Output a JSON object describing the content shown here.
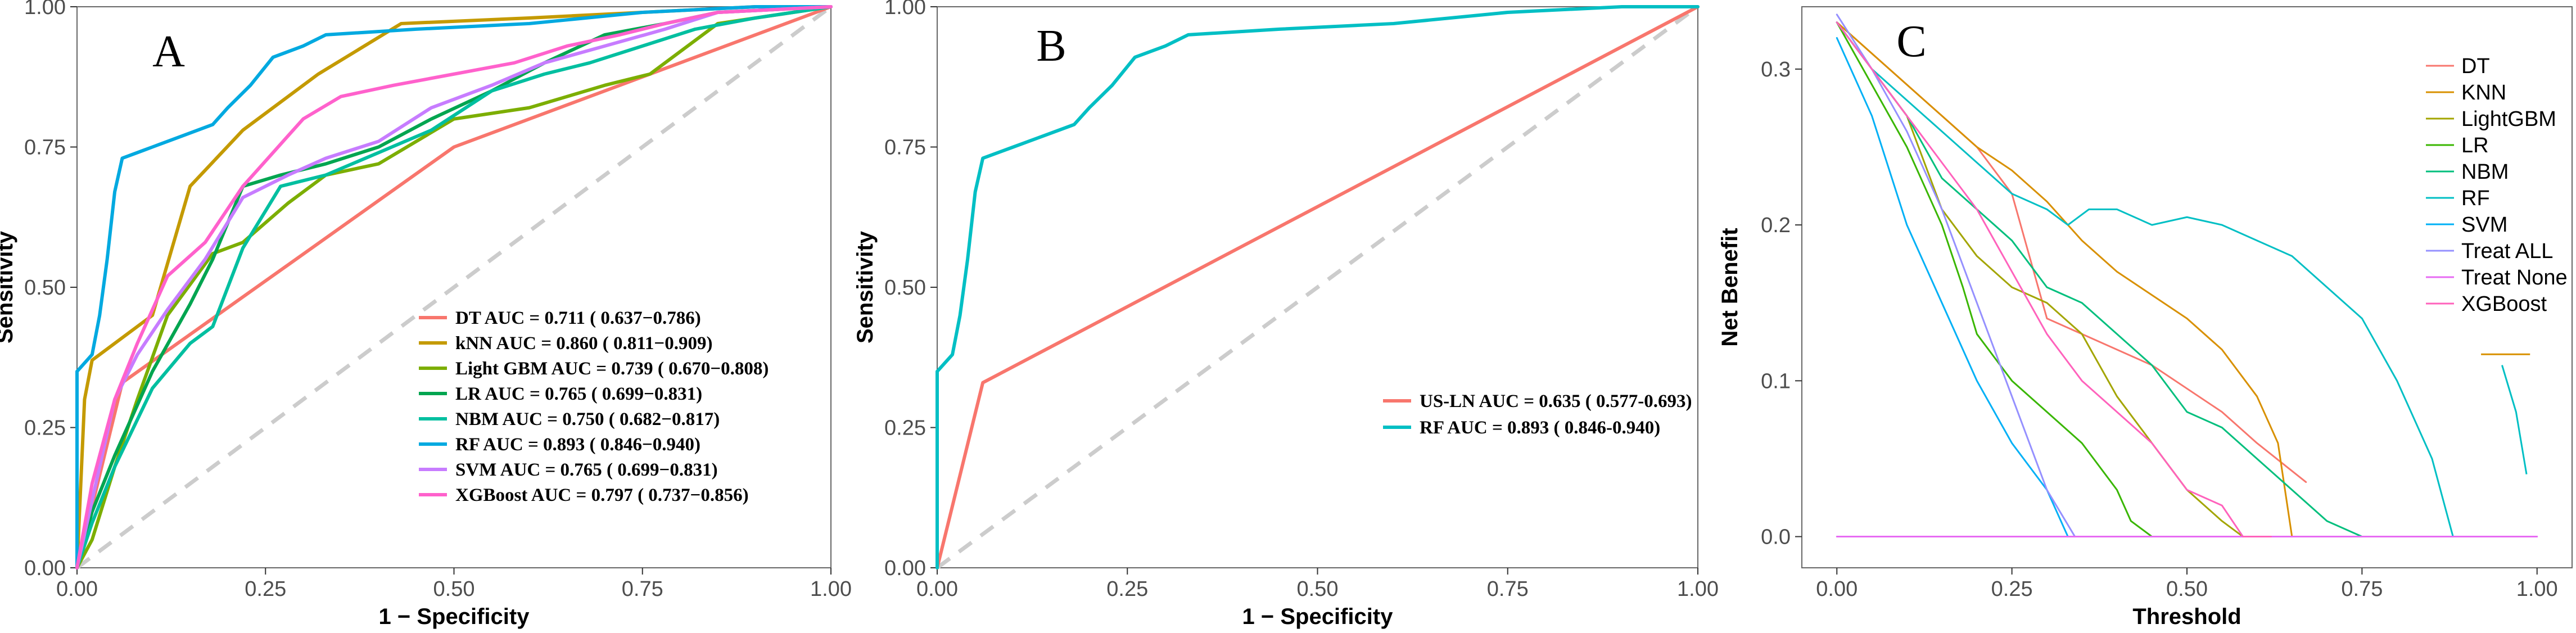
{
  "chart_data": [
    {
      "type": "line",
      "panel_label": "A",
      "title": "",
      "xlabel": "1 − Specificity",
      "ylabel": "Sensitivity",
      "xlim": [
        0,
        1
      ],
      "ylim": [
        0,
        1
      ],
      "xticks": [
        0.0,
        0.25,
        0.5,
        0.75,
        1.0
      ],
      "xtick_labels": [
        "0.00",
        "0.25",
        "0.50",
        "0.75",
        "1.00"
      ],
      "yticks": [
        0.0,
        0.25,
        0.5,
        0.75,
        1.0
      ],
      "ytick_labels": [
        "0.00",
        "0.25",
        "0.50",
        "0.75",
        "1.00"
      ],
      "grid": false,
      "reference_line": {
        "x": [
          0,
          1
        ],
        "y": [
          0,
          1
        ],
        "color": "#cccccc",
        "style": "dashed"
      },
      "legend_position": "bottom-right",
      "series": [
        {
          "name": "DT",
          "legend": "DT AUC = 0.711 ( 0.637−0.786)",
          "color": "#f8766d",
          "x": [
            0,
            0.06,
            0.5,
            1.0
          ],
          "y": [
            0,
            0.33,
            0.75,
            1.0
          ]
        },
        {
          "name": "kNN",
          "legend": "kNN AUC = 0.860 ( 0.811−0.909)",
          "color": "#c49a00",
          "x": [
            0,
            0.01,
            0.02,
            0.1,
            0.15,
            0.22,
            0.32,
            0.43,
            0.6,
            0.75,
            0.9,
            1.0
          ],
          "y": [
            0,
            0.3,
            0.37,
            0.45,
            0.68,
            0.78,
            0.88,
            0.97,
            0.98,
            0.99,
            1.0,
            1.0
          ]
        },
        {
          "name": "Light GBM",
          "legend": "Light GBM AUC = 0.739 ( 0.670−0.808)",
          "color": "#7cae00",
          "x": [
            0,
            0.02,
            0.05,
            0.08,
            0.12,
            0.18,
            0.22,
            0.28,
            0.33,
            0.4,
            0.5,
            0.6,
            0.7,
            0.76,
            0.8,
            0.85,
            1.0
          ],
          "y": [
            0,
            0.05,
            0.18,
            0.3,
            0.45,
            0.56,
            0.58,
            0.65,
            0.7,
            0.72,
            0.8,
            0.82,
            0.86,
            0.88,
            0.92,
            0.97,
            1.0
          ]
        },
        {
          "name": "LR",
          "legend": "LR AUC = 0.765 ( 0.699−0.831)",
          "color": "#00a550",
          "x": [
            0,
            0.02,
            0.05,
            0.1,
            0.15,
            0.18,
            0.22,
            0.27,
            0.33,
            0.4,
            0.47,
            0.55,
            0.62,
            0.7,
            0.78,
            0.85,
            1.0
          ],
          "y": [
            0,
            0.1,
            0.2,
            0.35,
            0.47,
            0.55,
            0.68,
            0.7,
            0.72,
            0.75,
            0.8,
            0.85,
            0.9,
            0.95,
            0.97,
            0.99,
            1.0
          ]
        },
        {
          "name": "NBM",
          "legend": "NBM AUC = 0.750 ( 0.682−0.817)",
          "color": "#00bfa0",
          "x": [
            0,
            0.02,
            0.05,
            0.1,
            0.15,
            0.18,
            0.22,
            0.27,
            0.33,
            0.4,
            0.47,
            0.55,
            0.62,
            0.68,
            0.75,
            0.82,
            0.9,
            1.0
          ],
          "y": [
            0,
            0.08,
            0.18,
            0.32,
            0.4,
            0.43,
            0.57,
            0.68,
            0.7,
            0.74,
            0.78,
            0.85,
            0.88,
            0.9,
            0.93,
            0.96,
            0.98,
            1.0
          ]
        },
        {
          "name": "RF",
          "legend": "RF AUC = 0.893 ( 0.846−0.940)",
          "color": "#00a9e0",
          "x": [
            0,
            0.0,
            0.02,
            0.03,
            0.04,
            0.05,
            0.06,
            0.1,
            0.14,
            0.18,
            0.2,
            0.23,
            0.26,
            0.3,
            0.33,
            0.45,
            0.6,
            0.75,
            0.9,
            1.0
          ],
          "y": [
            0,
            0.35,
            0.38,
            0.45,
            0.55,
            0.67,
            0.73,
            0.75,
            0.77,
            0.79,
            0.82,
            0.86,
            0.91,
            0.93,
            0.95,
            0.96,
            0.97,
            0.99,
            1.0,
            1.0
          ]
        },
        {
          "name": "SVM",
          "legend": "SVM AUC = 0.765 ( 0.699−0.831)",
          "color": "#c77cff",
          "x": [
            0,
            0.02,
            0.05,
            0.08,
            0.12,
            0.17,
            0.22,
            0.28,
            0.33,
            0.4,
            0.47,
            0.55,
            0.62,
            0.7,
            0.78,
            0.85,
            1.0
          ],
          "y": [
            0,
            0.12,
            0.3,
            0.38,
            0.46,
            0.55,
            0.66,
            0.7,
            0.73,
            0.76,
            0.82,
            0.86,
            0.9,
            0.93,
            0.96,
            0.99,
            1.0
          ]
        },
        {
          "name": "XGBoost",
          "legend": "XGBoost AUC = 0.797 ( 0.737−0.856)",
          "color": "#ff61cc",
          "x": [
            0,
            0.02,
            0.05,
            0.08,
            0.12,
            0.17,
            0.22,
            0.26,
            0.3,
            0.35,
            0.42,
            0.5,
            0.58,
            0.65,
            0.72,
            0.78,
            0.85,
            1.0
          ],
          "y": [
            0,
            0.15,
            0.3,
            0.4,
            0.52,
            0.58,
            0.68,
            0.74,
            0.8,
            0.84,
            0.86,
            0.88,
            0.9,
            0.93,
            0.95,
            0.97,
            0.99,
            1.0
          ]
        }
      ]
    },
    {
      "type": "line",
      "panel_label": "B",
      "title": "",
      "xlabel": "1 − Specificity",
      "ylabel": "Sensitivity",
      "xlim": [
        0,
        1
      ],
      "ylim": [
        0,
        1
      ],
      "xticks": [
        0.0,
        0.25,
        0.5,
        0.75,
        1.0
      ],
      "xtick_labels": [
        "0.00",
        "0.25",
        "0.50",
        "0.75",
        "1.00"
      ],
      "yticks": [
        0.0,
        0.25,
        0.5,
        0.75,
        1.0
      ],
      "ytick_labels": [
        "0.00",
        "0.25",
        "0.50",
        "0.75",
        "1.00"
      ],
      "grid": false,
      "reference_line": {
        "x": [
          0,
          1
        ],
        "y": [
          0,
          1
        ],
        "color": "#cccccc",
        "style": "dashed"
      },
      "legend_position": "right",
      "series": [
        {
          "name": "US-LN",
          "legend": "US-LN AUC = 0.635 ( 0.577-0.693)",
          "color": "#f8766d",
          "x": [
            0,
            0.06,
            1.0
          ],
          "y": [
            0,
            0.33,
            1.0
          ]
        },
        {
          "name": "RF",
          "legend": "RF AUC = 0.893 ( 0.846-0.940)",
          "color": "#00bfc4",
          "x": [
            0,
            0.0,
            0.02,
            0.03,
            0.04,
            0.05,
            0.06,
            0.1,
            0.14,
            0.18,
            0.2,
            0.23,
            0.26,
            0.3,
            0.33,
            0.45,
            0.6,
            0.75,
            0.9,
            1.0
          ],
          "y": [
            0,
            0.35,
            0.38,
            0.45,
            0.55,
            0.67,
            0.73,
            0.75,
            0.77,
            0.79,
            0.82,
            0.86,
            0.91,
            0.93,
            0.95,
            0.96,
            0.97,
            0.99,
            1.0,
            1.0
          ]
        }
      ]
    },
    {
      "type": "line",
      "panel_label": "C",
      "title": "",
      "xlabel": "Threshold",
      "ylabel": "Net Benefit",
      "xlim": [
        -0.05,
        1.05
      ],
      "ylim": [
        -0.02,
        0.34
      ],
      "xticks": [
        0.0,
        0.25,
        0.5,
        0.75,
        1.0
      ],
      "xtick_labels": [
        "0.00",
        "0.25",
        "0.50",
        "0.75",
        "1.00"
      ],
      "yticks": [
        0.0,
        0.1,
        0.2,
        0.3
      ],
      "ytick_labels": [
        "0.0",
        "0.1",
        "0.2",
        "0.3"
      ],
      "grid": false,
      "legend_position": "top-right",
      "series": [
        {
          "name": "DT",
          "color": "#f8766d",
          "x": [
            0.0,
            0.1,
            0.15,
            0.2,
            0.25,
            0.3,
            0.35,
            0.45,
            0.55,
            0.6,
            0.67
          ],
          "y": [
            0.33,
            0.29,
            0.27,
            0.25,
            0.22,
            0.14,
            0.13,
            0.11,
            0.08,
            0.06,
            0.035
          ]
        },
        {
          "name": "KNN",
          "color": "#d89000",
          "x": [
            0.0,
            0.1,
            0.15,
            0.2,
            0.25,
            0.3,
            0.35,
            0.4,
            0.45,
            0.5,
            0.55,
            0.6,
            0.63,
            0.65
          ],
          "y": [
            0.33,
            0.29,
            0.27,
            0.25,
            0.235,
            0.215,
            0.19,
            0.17,
            0.155,
            0.14,
            0.12,
            0.09,
            0.06,
            0.0
          ]
        },
        {
          "name": "LightGBM",
          "color": "#a3a500",
          "x": [
            0.0,
            0.05,
            0.1,
            0.15,
            0.2,
            0.25,
            0.3,
            0.35,
            0.4,
            0.45,
            0.5,
            0.55,
            0.58
          ],
          "y": [
            0.33,
            0.3,
            0.27,
            0.21,
            0.18,
            0.16,
            0.15,
            0.13,
            0.09,
            0.06,
            0.03,
            0.01,
            0.0
          ]
        },
        {
          "name": "LR",
          "color": "#39b600",
          "x": [
            0.0,
            0.05,
            0.1,
            0.15,
            0.18,
            0.2,
            0.25,
            0.3,
            0.35,
            0.4,
            0.42,
            0.45
          ],
          "y": [
            0.33,
            0.29,
            0.25,
            0.2,
            0.16,
            0.13,
            0.1,
            0.08,
            0.06,
            0.03,
            0.01,
            0.0
          ]
        },
        {
          "name": "NBM",
          "color": "#00bf7d",
          "x": [
            0.0,
            0.05,
            0.1,
            0.15,
            0.2,
            0.25,
            0.3,
            0.35,
            0.4,
            0.45,
            0.5,
            0.55,
            0.6,
            0.65,
            0.7,
            0.75
          ],
          "y": [
            0.33,
            0.3,
            0.27,
            0.23,
            0.21,
            0.19,
            0.16,
            0.15,
            0.13,
            0.11,
            0.08,
            0.07,
            0.05,
            0.03,
            0.01,
            0.0
          ]
        },
        {
          "name": "RF",
          "color": "#00bfc4",
          "x": [
            0.0,
            0.05,
            0.1,
            0.15,
            0.2,
            0.25,
            0.3,
            0.33,
            0.36,
            0.4,
            0.45,
            0.5,
            0.55,
            0.6,
            0.65,
            0.7,
            0.75,
            0.8,
            0.85,
            0.88
          ],
          "y": [
            0.33,
            0.3,
            0.28,
            0.26,
            0.24,
            0.22,
            0.21,
            0.2,
            0.21,
            0.21,
            0.2,
            0.205,
            0.2,
            0.19,
            0.18,
            0.16,
            0.14,
            0.1,
            0.05,
            0.0
          ]
        },
        {
          "name": "SVM",
          "color": "#00b0f6",
          "x": [
            0.0,
            0.05,
            0.1,
            0.15,
            0.2,
            0.25,
            0.3,
            0.33
          ],
          "y": [
            0.32,
            0.27,
            0.2,
            0.15,
            0.1,
            0.06,
            0.03,
            0.0
          ]
        },
        {
          "name": "Treat ALL",
          "color": "#9590ff",
          "x": [
            0.0,
            0.05,
            0.1,
            0.15,
            0.2,
            0.25,
            0.3,
            0.34
          ],
          "y": [
            0.335,
            0.3,
            0.26,
            0.21,
            0.15,
            0.09,
            0.03,
            0.0
          ]
        },
        {
          "name": "Treat None",
          "color": "#e76bf3",
          "x": [
            0.0,
            1.0
          ],
          "y": [
            0.0,
            0.0
          ]
        },
        {
          "name": "XGBoost",
          "color": "#ff62bc",
          "x": [
            0.0,
            0.05,
            0.1,
            0.15,
            0.2,
            0.25,
            0.3,
            0.35,
            0.4,
            0.45,
            0.5,
            0.55,
            0.58,
            0.62
          ],
          "y": [
            0.33,
            0.3,
            0.27,
            0.24,
            0.21,
            0.17,
            0.13,
            0.1,
            0.08,
            0.06,
            0.03,
            0.02,
            0.0,
            0.0
          ]
        }
      ]
    }
  ]
}
